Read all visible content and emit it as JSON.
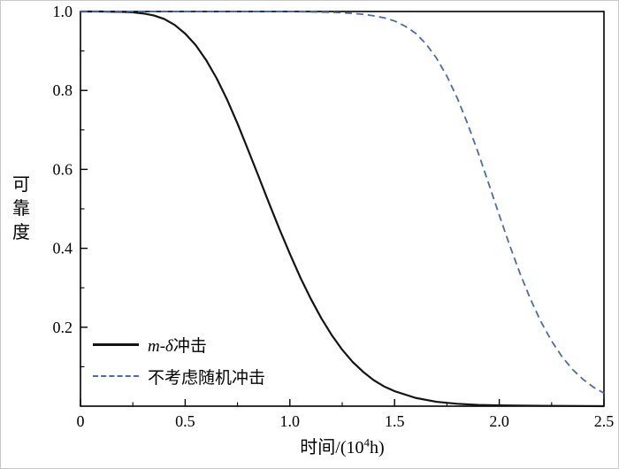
{
  "figure": {
    "background": "#ffffff"
  },
  "chart_data": {
    "type": "line",
    "title": "",
    "xlabel": "时间/(10⁴h)",
    "xlabel_prefix": "时间/(10",
    "xlabel_sup": "4",
    "xlabel_suffix": "h)",
    "ylabel": "可靠度",
    "xlim": [
      0,
      2.5
    ],
    "ylim": [
      0,
      1.0
    ],
    "grid": false,
    "legend_position": "lower-left-inside",
    "axis_color": "#000000",
    "xticks": {
      "values": [
        0,
        0.5,
        1.0,
        1.5,
        2.0,
        2.5
      ],
      "labels": [
        "0",
        "0.5",
        "1.0",
        "1.5",
        "2.0",
        "2.5"
      ],
      "minor": [
        0.25,
        0.75,
        1.25,
        1.75,
        2.25
      ]
    },
    "yticks": {
      "values": [
        0.2,
        0.4,
        0.6,
        0.8,
        1.0
      ],
      "labels": [
        "0.2",
        "0.4",
        "0.6",
        "0.8",
        "1.0"
      ],
      "minor": [
        0.1,
        0.3,
        0.5,
        0.7,
        0.9
      ]
    },
    "series": [
      {
        "name": "m-δ冲击",
        "color": "#141414",
        "style": "solid",
        "width": 2.2,
        "x": [
          0,
          0.1,
          0.2,
          0.25,
          0.3,
          0.35,
          0.4,
          0.45,
          0.5,
          0.55,
          0.6,
          0.65,
          0.7,
          0.75,
          0.8,
          0.85,
          0.9,
          0.95,
          1.0,
          1.05,
          1.1,
          1.15,
          1.2,
          1.25,
          1.3,
          1.35,
          1.4,
          1.45,
          1.5,
          1.6,
          1.7,
          1.8,
          1.9,
          2.0,
          2.2,
          2.5
        ],
        "y": [
          1.0,
          1.0,
          0.999,
          0.998,
          0.995,
          0.99,
          0.981,
          0.966,
          0.944,
          0.915,
          0.877,
          0.831,
          0.777,
          0.716,
          0.65,
          0.583,
          0.515,
          0.449,
          0.386,
          0.326,
          0.272,
          0.223,
          0.18,
          0.143,
          0.112,
          0.087,
          0.066,
          0.05,
          0.038,
          0.021,
          0.011,
          0.006,
          0.003,
          0.002,
          0.001,
          0.0
        ]
      },
      {
        "name": "不考虑随机冲击",
        "color": "#4a6da7",
        "style": "dashed",
        "width": 1.8,
        "x": [
          0,
          0.5,
          1.0,
          1.1,
          1.2,
          1.25,
          1.3,
          1.35,
          1.4,
          1.45,
          1.5,
          1.55,
          1.6,
          1.65,
          1.7,
          1.75,
          1.8,
          1.85,
          1.9,
          1.95,
          2.0,
          2.05,
          2.1,
          2.15,
          2.2,
          2.25,
          2.3,
          2.35,
          2.4,
          2.45,
          2.5
        ],
        "y": [
          1.0,
          1.0,
          1.0,
          0.999,
          0.998,
          0.997,
          0.995,
          0.993,
          0.989,
          0.984,
          0.976,
          0.963,
          0.945,
          0.918,
          0.882,
          0.836,
          0.78,
          0.714,
          0.641,
          0.563,
          0.484,
          0.407,
          0.335,
          0.27,
          0.213,
          0.165,
          0.125,
          0.093,
          0.068,
          0.048,
          0.033
        ]
      }
    ]
  },
  "legend": {
    "entries": [
      {
        "italic": "m-δ",
        "text": "冲击"
      },
      {
        "italic": "",
        "text": "不考虑随机冲击"
      }
    ]
  }
}
